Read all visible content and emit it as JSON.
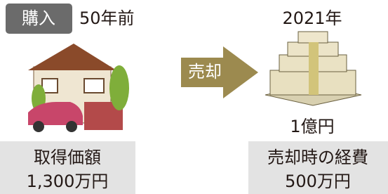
{
  "left": {
    "tag": "購入",
    "time": "50年前",
    "box": {
      "label": "取得価額",
      "amount": "1,300万円"
    }
  },
  "arrow": {
    "label": "売却"
  },
  "right": {
    "time": "2021年",
    "price": "1億円",
    "box": {
      "label": "売却時の経費",
      "amount": "500万円"
    }
  }
}
